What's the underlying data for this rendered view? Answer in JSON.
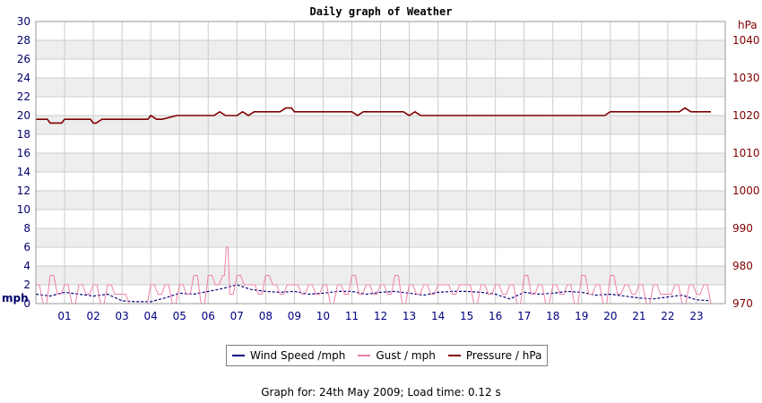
{
  "chart_data": {
    "type": "line",
    "title": "Daily graph of Weather",
    "left_axis": {
      "unit": "mph",
      "ylim": [
        0,
        30
      ],
      "ticks": [
        0,
        2,
        4,
        6,
        8,
        10,
        12,
        14,
        16,
        18,
        20,
        22,
        24,
        26,
        28,
        30
      ]
    },
    "right_axis": {
      "unit": "hPa",
      "ylim": [
        970,
        1045
      ],
      "ticks": [
        970,
        980,
        990,
        1000,
        1010,
        1020,
        1030,
        1040
      ]
    },
    "x_ticks": [
      "01",
      "02",
      "03",
      "04",
      "05",
      "06",
      "07",
      "08",
      "09",
      "10",
      "11",
      "12",
      "13",
      "14",
      "15",
      "16",
      "17",
      "18",
      "19",
      "20",
      "21",
      "22",
      "23"
    ],
    "xlim": [
      0,
      24
    ],
    "grid": true,
    "legend_position": "bottom",
    "series": [
      {
        "name": "Wind Speed /mph",
        "color": "#000080",
        "axis": "left",
        "x": [
          0,
          0.5,
          1,
          1.5,
          2,
          2.5,
          3,
          3.5,
          4,
          4.5,
          5,
          5.5,
          6,
          6.5,
          7,
          7.5,
          8,
          8.5,
          9,
          9.5,
          10,
          10.5,
          11,
          11.5,
          12,
          12.5,
          13,
          13.5,
          14,
          14.5,
          15,
          15.5,
          16,
          16.5,
          17,
          17.5,
          18,
          18.5,
          19,
          19.5,
          20,
          20.5,
          21,
          21.5,
          22,
          22.5,
          23,
          23.5
        ],
        "y": [
          1,
          0.8,
          1.2,
          1,
          0.8,
          1,
          0.3,
          0.2,
          0.2,
          0.6,
          1.1,
          1,
          1.3,
          1.6,
          2,
          1.5,
          1.3,
          1.2,
          1.3,
          1,
          1.1,
          1.3,
          1.3,
          1,
          1.2,
          1.3,
          1.1,
          0.9,
          1.2,
          1.3,
          1.3,
          1.2,
          1,
          0.5,
          1.2,
          1,
          1.1,
          1.3,
          1.2,
          0.9,
          1,
          0.8,
          0.6,
          0.5,
          0.7,
          0.9,
          0.4,
          0.3
        ]
      },
      {
        "name": "Gust / mph",
        "color": "#f080a8",
        "axis": "left",
        "x": [
          0,
          0.25,
          0.5,
          0.75,
          1,
          1.25,
          1.5,
          1.75,
          2,
          2.25,
          2.5,
          2.75,
          3,
          3.25,
          3.5,
          3.75,
          4,
          4.25,
          4.5,
          4.75,
          5,
          5.25,
          5.5,
          5.75,
          6,
          6.25,
          6.5,
          6.63,
          6.75,
          7,
          7.25,
          7.5,
          7.75,
          8,
          8.25,
          8.5,
          8.75,
          9,
          9.25,
          9.5,
          9.75,
          10,
          10.25,
          10.5,
          10.75,
          11,
          11.25,
          11.5,
          11.75,
          12,
          12.25,
          12.5,
          12.75,
          13,
          13.25,
          13.5,
          13.75,
          14,
          14.25,
          14.5,
          14.75,
          15,
          15.25,
          15.5,
          15.75,
          16,
          16.25,
          16.5,
          16.75,
          17,
          17.25,
          17.5,
          17.75,
          18,
          18.25,
          18.5,
          18.75,
          19,
          19.25,
          19.5,
          19.75,
          20,
          20.25,
          20.5,
          20.75,
          21,
          21.25,
          21.5,
          21.75,
          22,
          22.25,
          22.5,
          22.75,
          23,
          23.25,
          23.5
        ],
        "y": [
          2,
          0,
          3,
          1,
          2,
          0,
          2,
          1,
          2,
          0,
          2,
          1,
          1,
          0,
          0,
          0,
          2,
          1,
          2,
          0,
          2,
          1,
          3,
          0,
          3,
          2,
          3,
          6,
          1,
          3,
          2,
          2,
          1,
          3,
          2,
          1,
          2,
          2,
          1,
          2,
          1,
          2,
          0,
          2,
          1,
          3,
          1,
          2,
          1,
          2,
          1,
          3,
          0,
          2,
          1,
          2,
          1,
          2,
          2,
          1,
          2,
          2,
          0,
          2,
          1,
          2,
          1,
          2,
          0,
          3,
          1,
          2,
          0,
          2,
          1,
          2,
          0,
          3,
          1,
          2,
          0,
          3,
          1,
          2,
          1,
          2,
          0,
          2,
          1,
          1,
          2,
          0,
          2,
          1,
          2,
          0
        ]
      },
      {
        "name": "Pressure / hPa",
        "color": "#800000",
        "axis": "right",
        "x": [
          0,
          0.4,
          0.5,
          0.9,
          1,
          1.9,
          2,
          2.1,
          2.3,
          3,
          3.9,
          4,
          4.2,
          4.4,
          4.9,
          5,
          6,
          6.2,
          6.4,
          6.6,
          6.8,
          7,
          7.2,
          7.4,
          7.6,
          8,
          8.5,
          8.7,
          8.9,
          9,
          9.5,
          10,
          10.5,
          11,
          11.2,
          11.4,
          12,
          12.8,
          13,
          13.2,
          13.4,
          14,
          15,
          16,
          17,
          18,
          19,
          19.8,
          20,
          21,
          22,
          22.4,
          22.6,
          22.8,
          23,
          23.5
        ],
        "y": [
          1019,
          1019,
          1018,
          1018,
          1019,
          1019,
          1018,
          1018,
          1019,
          1019,
          1019,
          1020,
          1019,
          1019,
          1020,
          1020,
          1020,
          1020,
          1021,
          1020,
          1020,
          1020,
          1021,
          1020,
          1021,
          1021,
          1021,
          1022,
          1022,
          1021,
          1021,
          1021,
          1021,
          1021,
          1020,
          1021,
          1021,
          1021,
          1020,
          1021,
          1020,
          1020,
          1020,
          1020,
          1020,
          1020,
          1020,
          1020,
          1021,
          1021,
          1021,
          1021,
          1022,
          1021,
          1021,
          1021
        ]
      }
    ]
  },
  "legend": {
    "wind_label": "Wind Speed /mph",
    "gust_label": "Gust / mph",
    "pressure_label": "Pressure / hPa"
  },
  "footer": {
    "text": "Graph for: 24th May 2009; Load time: 0.12 s"
  },
  "colors": {
    "band": "#eeeeee",
    "grid": "#cccccc",
    "left_axis_text": "#00006b",
    "right_axis_text": "#800000"
  }
}
